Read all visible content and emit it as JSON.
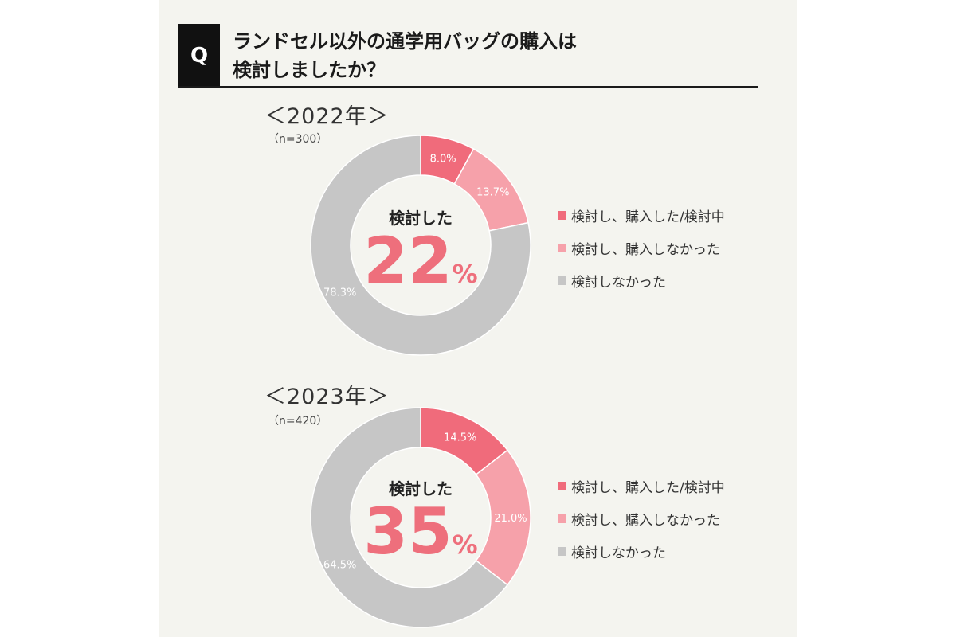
{
  "question": {
    "badge": "Q",
    "line1": "ランドセル以外の通学用バッグの購入は",
    "line2": "検討しましたか？"
  },
  "colors": {
    "bought": "#f06b7b",
    "not_bought": "#f6a1aa",
    "not_considered": "#c6c6c6",
    "accent_text": "#ee6f7c"
  },
  "chart_data": [
    {
      "type": "pie",
      "year_label": "＜2022年＞",
      "n_label": "（n=300）",
      "center_title": "検討した",
      "center_value": "22",
      "center_unit": "%",
      "categories": [
        "検討し、購入した/検討中",
        "検討し、購入しなかった",
        "検討しなかった"
      ],
      "values": [
        8.0,
        13.7,
        78.3
      ],
      "value_labels": [
        "8.0%",
        "13.7%",
        "78.3%"
      ],
      "legend_position": "right"
    },
    {
      "type": "pie",
      "year_label": "＜2023年＞",
      "n_label": "（n=420）",
      "center_title": "検討した",
      "center_value": "35",
      "center_unit": "%",
      "categories": [
        "検討し、購入した/検討中",
        "検討し、購入しなかった",
        "検討しなかった"
      ],
      "values": [
        14.5,
        21.0,
        64.5
      ],
      "value_labels": [
        "14.5%",
        "21.0%",
        "64.5%"
      ],
      "legend_position": "right"
    }
  ]
}
